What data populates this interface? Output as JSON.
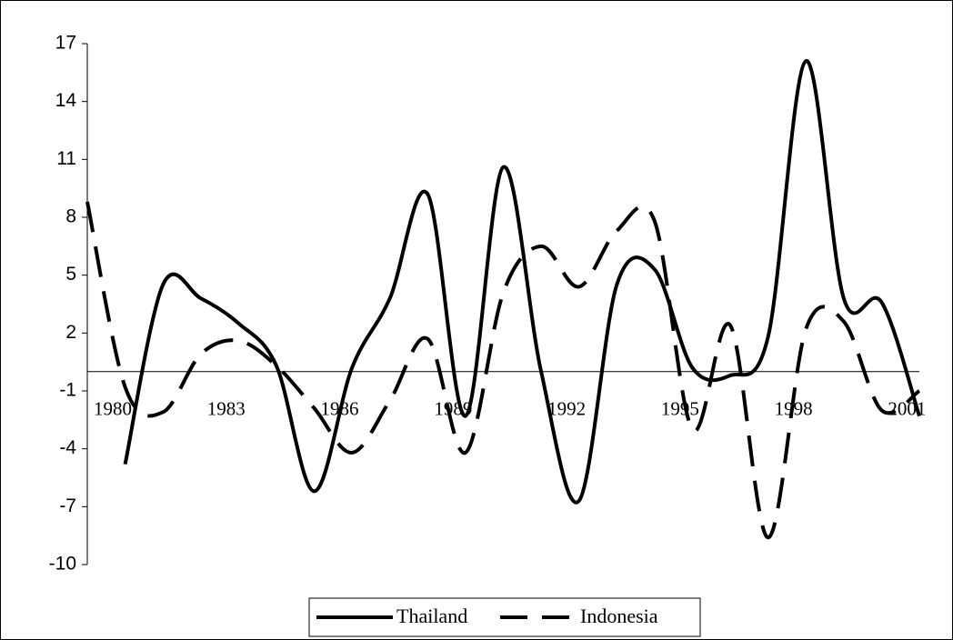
{
  "chart_data": {
    "type": "line",
    "categories": [
      "1980",
      null,
      null,
      "1983",
      null,
      null,
      "1986",
      null,
      null,
      "1989",
      null,
      null,
      "1992",
      null,
      null,
      "1995",
      null,
      null,
      "1998",
      null,
      null,
      "2001",
      null
    ],
    "series": [
      {
        "name": "Thailand",
        "color": "#000000",
        "dash": "solid",
        "values": [
          null,
          -4.8,
          4.5,
          3.8,
          2.5,
          0.3,
          -6.2,
          0.2,
          3.8,
          9.2,
          -2.3,
          10.6,
          0,
          -6.7,
          4.5,
          5.3,
          0.2,
          -0.2,
          1.8,
          16.1,
          3.8,
          3.6,
          -2.3
        ]
      },
      {
        "name": "Indonesia",
        "color": "#000000",
        "dash": "dashed",
        "values": [
          8.8,
          -0.8,
          -2.1,
          0.9,
          1.6,
          0.3,
          -1.9,
          -4.2,
          -1.5,
          1.7,
          -4.2,
          4.1,
          6.5,
          4.4,
          7.3,
          7.8,
          -3.0,
          2.4,
          -8.6,
          2.2,
          2.6,
          -2.0,
          -1.0
        ]
      }
    ],
    "ylim": [
      -10,
      17
    ],
    "yticks": [
      -10,
      -7,
      -4,
      -1,
      2,
      5,
      8,
      11,
      14,
      17
    ],
    "legend": "bottom"
  }
}
